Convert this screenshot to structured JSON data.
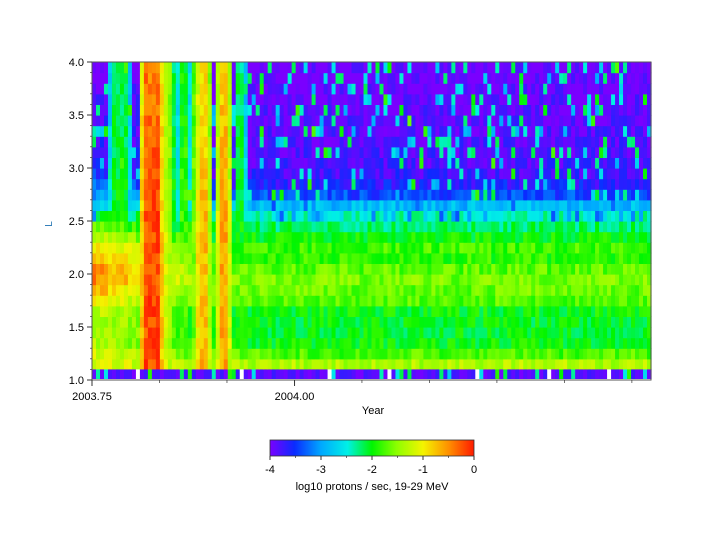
{
  "chart_data": {
    "type": "heatmap",
    "title": "",
    "xlabel": "Year",
    "ylabel": "L",
    "xlim": [
      2003.75,
      2004.44
    ],
    "ylim": [
      1.0,
      4.0
    ],
    "x_ticks": [
      2003.75,
      2004.0
    ],
    "x_tick_labels": [
      "2003.75",
      "2004.00"
    ],
    "y_ticks": [
      1.0,
      1.5,
      2.0,
      2.5,
      3.0,
      3.5,
      4.0
    ],
    "y_tick_labels": [
      "1.0",
      "1.5",
      "2.0",
      "2.5",
      "3.0",
      "3.5",
      "4.0"
    ],
    "colorbar": {
      "label": "log10 protons / sec, 19-29 MeV",
      "range": [
        -4,
        0
      ],
      "ticks": [
        -4,
        -3,
        -2,
        -1,
        0
      ],
      "tick_labels": [
        "-4",
        "-3",
        "-2",
        "-1",
        "0"
      ]
    },
    "data_description": "Time-L shell map of log10 proton flux (19-29 MeV); inner belt L 1.1-2.6 steady around -2 to -1; solar particle event bursts near 2003.82-2003.90 reaching 0",
    "background_level": -4,
    "belt_profile": {
      "L": [
        1.0,
        1.1,
        1.2,
        1.3,
        1.4,
        1.5,
        1.6,
        1.7,
        1.8,
        1.9,
        2.0,
        2.1,
        2.2,
        2.3,
        2.4,
        2.5,
        2.6,
        2.7,
        2.8,
        3.0,
        3.5,
        4.0
      ],
      "value_early": [
        -4,
        -1.2,
        -1.0,
        -1.3,
        -1.4,
        -1.2,
        -1.3,
        -1.2,
        -0.8,
        -0.5,
        -0.4,
        -0.5,
        -0.7,
        -1.1,
        -1.5,
        -1.8,
        -2.3,
        -2.9,
        -3.2,
        -3.6,
        -3.8,
        -4
      ],
      "value_late": [
        -4,
        -1.1,
        -1.6,
        -1.9,
        -2.1,
        -2.0,
        -2.1,
        -1.9,
        -1.5,
        -1.8,
        -1.4,
        -2.0,
        -1.7,
        -1.9,
        -2.1,
        -2.3,
        -2.5,
        -3.2,
        -3.6,
        -3.8,
        -3.9,
        -4
      ]
    },
    "events": [
      {
        "x": 2003.778,
        "peak": -1.8
      },
      {
        "x": 2003.79,
        "peak": -1.8
      },
      {
        "x": 2003.82,
        "peak": 0.0
      },
      {
        "x": 2003.826,
        "peak": -0.3
      },
      {
        "x": 2003.83,
        "peak": 0.0
      },
      {
        "x": 2003.838,
        "peak": -1.0
      },
      {
        "x": 2003.846,
        "peak": -1.2
      },
      {
        "x": 2003.862,
        "peak": -1.6
      },
      {
        "x": 2003.882,
        "peak": -0.8
      },
      {
        "x": 2003.888,
        "peak": -0.5
      },
      {
        "x": 2003.912,
        "peak": -0.4
      },
      {
        "x": 2003.934,
        "peak": -1.8
      }
    ],
    "bottom_row": {
      "L_range": [
        1.0,
        1.1
      ],
      "value": -4
    }
  }
}
